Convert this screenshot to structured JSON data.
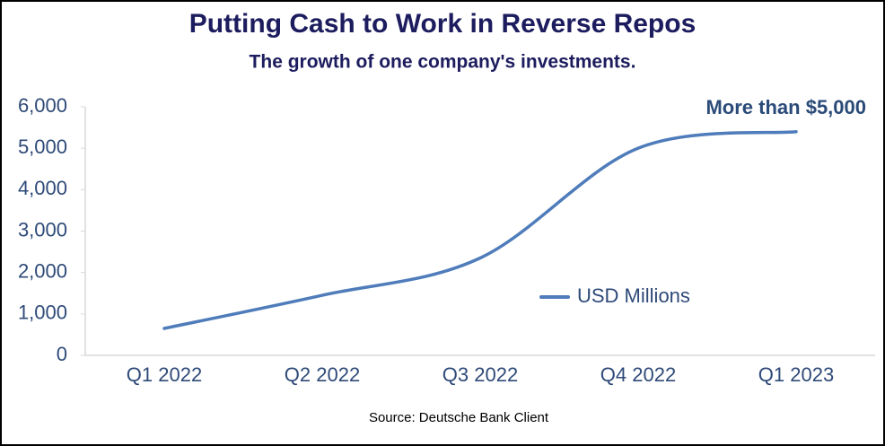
{
  "chart_data": {
    "type": "line",
    "title": "Putting Cash to Work in Reverse Repos",
    "subtitle": "The growth of one company's investments.",
    "annotation": "More than $5,000",
    "source": "Source: Deutsche Bank Client",
    "categories": [
      "Q1 2022",
      "Q2 2022",
      "Q3 2022",
      "Q4 2022",
      "Q1 2023"
    ],
    "series": [
      {
        "name": "USD Millions",
        "color": "#4f7cba",
        "values": [
          650,
          1450,
          2350,
          5000,
          5400
        ]
      }
    ],
    "ylim": [
      0,
      6000
    ],
    "yticks": [
      0,
      {
        "value": 1000,
        "label": "1,000"
      },
      {
        "value": 2000,
        "label": "2,000"
      },
      {
        "value": 3000,
        "label": "3,000"
      },
      {
        "value": 4000,
        "label": "4,000"
      },
      {
        "value": 5000,
        "label": "5,000"
      },
      {
        "value": 6000,
        "label": "6,000"
      }
    ],
    "grid": false
  }
}
